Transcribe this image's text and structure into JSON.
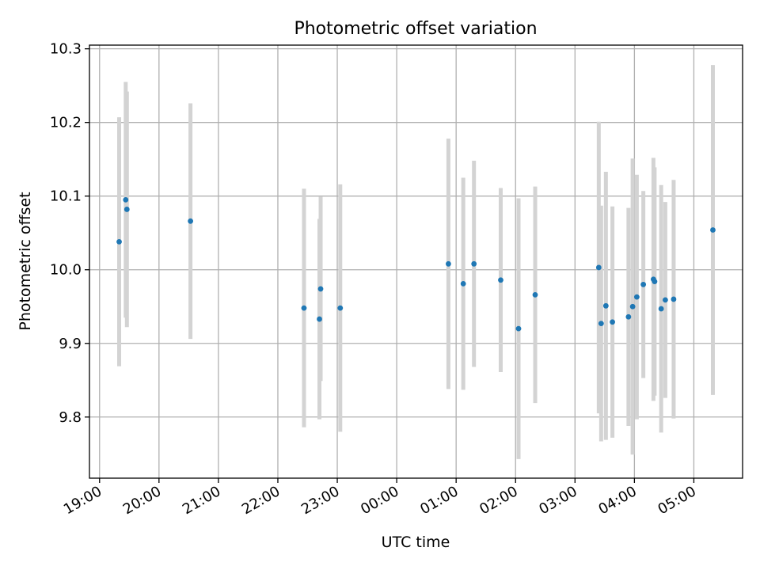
{
  "chart_data": {
    "type": "scatter",
    "title": "Photometric offset variation",
    "xlabel": "UTC time",
    "ylabel": "Photometric offset",
    "x_tick_labels": [
      "19:00",
      "20:00",
      "21:00",
      "22:00",
      "23:00",
      "00:00",
      "01:00",
      "02:00",
      "03:00",
      "04:00",
      "05:00"
    ],
    "x_ticks_hours": [
      19,
      20,
      21,
      22,
      23,
      24,
      25,
      26,
      27,
      28,
      29
    ],
    "x_lim_hours": [
      18.83,
      29.82
    ],
    "y_ticks": [
      9.8,
      9.9,
      10.0,
      10.1,
      10.2,
      10.3
    ],
    "y_tick_labels": [
      "9.8",
      "9.9",
      "10.0",
      "10.1",
      "10.2",
      "10.3"
    ],
    "y_lim": [
      9.717,
      10.305
    ],
    "grid": true,
    "colors": {
      "point": "#1f77b4",
      "errorbar": "#d3d3d3",
      "grid": "#b0b0b0"
    },
    "points": [
      {
        "t": 19.33,
        "y": 10.038,
        "err": 0.169
      },
      {
        "t": 19.44,
        "y": 10.095,
        "err": 0.16
      },
      {
        "t": 19.46,
        "y": 10.082,
        "err": 0.16
      },
      {
        "t": 20.53,
        "y": 10.066,
        "err": 0.16
      },
      {
        "t": 22.44,
        "y": 9.948,
        "err": 0.162
      },
      {
        "t": 22.7,
        "y": 9.933,
        "err": 0.136
      },
      {
        "t": 22.72,
        "y": 9.974,
        "err": 0.125
      },
      {
        "t": 23.05,
        "y": 9.948,
        "err": 0.168
      },
      {
        "t": 24.87,
        "y": 10.008,
        "err": 0.17
      },
      {
        "t": 25.12,
        "y": 9.981,
        "err": 0.144
      },
      {
        "t": 25.3,
        "y": 10.008,
        "err": 0.14
      },
      {
        "t": 25.75,
        "y": 9.986,
        "err": 0.125
      },
      {
        "t": 26.05,
        "y": 9.92,
        "err": 0.177
      },
      {
        "t": 26.33,
        "y": 9.966,
        "err": 0.147
      },
      {
        "t": 27.4,
        "y": 10.003,
        "err": 0.198
      },
      {
        "t": 27.44,
        "y": 9.927,
        "err": 0.16
      },
      {
        "t": 27.52,
        "y": 9.951,
        "err": 0.182
      },
      {
        "t": 27.63,
        "y": 9.929,
        "err": 0.157
      },
      {
        "t": 27.9,
        "y": 9.936,
        "err": 0.148
      },
      {
        "t": 27.97,
        "y": 9.95,
        "err": 0.201
      },
      {
        "t": 28.04,
        "y": 9.963,
        "err": 0.166
      },
      {
        "t": 28.15,
        "y": 9.98,
        "err": 0.127
      },
      {
        "t": 28.32,
        "y": 9.987,
        "err": 0.165
      },
      {
        "t": 28.34,
        "y": 9.984,
        "err": 0.155
      },
      {
        "t": 28.45,
        "y": 9.947,
        "err": 0.168
      },
      {
        "t": 28.52,
        "y": 9.959,
        "err": 0.133
      },
      {
        "t": 28.66,
        "y": 9.96,
        "err": 0.162
      },
      {
        "t": 29.32,
        "y": 10.054,
        "err": 0.224
      }
    ]
  }
}
